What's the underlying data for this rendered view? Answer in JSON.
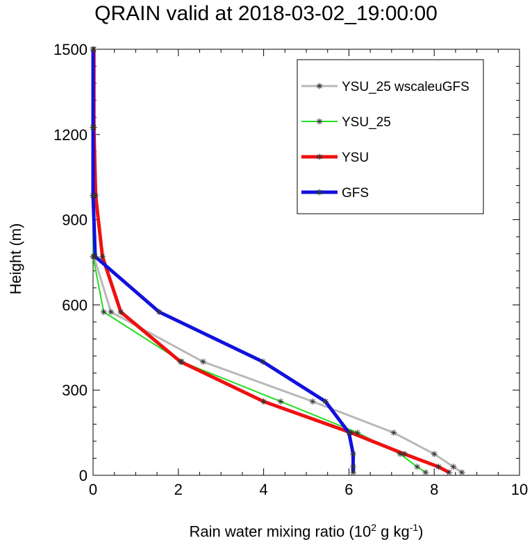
{
  "chart_data": {
    "type": "line",
    "title": "QRAIN valid at 2018-03-02_19:00:00",
    "xlabel": "Rain water mixing ratio (10",
    "xlabel_sup1": "2",
    "xlabel_mid": " g kg",
    "xlabel_sup2": "-1",
    "xlabel_end": ")",
    "ylabel": "Height (m)",
    "xlim": [
      0,
      10
    ],
    "ylim": [
      0,
      1500
    ],
    "xticks": [
      0,
      2,
      4,
      6,
      8,
      10
    ],
    "yticks": [
      0,
      300,
      600,
      900,
      1200,
      1500
    ],
    "grid": false,
    "legend_position": "top-right",
    "series": [
      {
        "name": "YSU_25 wscaleuGFS",
        "color": "#b8b8b8",
        "points": [
          [
            8.65,
            10
          ],
          [
            8.45,
            30
          ],
          [
            8.0,
            75
          ],
          [
            7.05,
            150
          ],
          [
            5.15,
            260
          ],
          [
            2.58,
            400
          ],
          [
            0.42,
            575
          ],
          [
            0.02,
            770
          ],
          [
            0.0,
            985
          ],
          [
            0.0,
            1225
          ],
          [
            0.0,
            1500
          ]
        ]
      },
      {
        "name": "YSU_25",
        "color": "#22dd22",
        "points": [
          [
            7.8,
            10
          ],
          [
            7.6,
            30
          ],
          [
            7.2,
            75
          ],
          [
            6.2,
            150
          ],
          [
            4.4,
            260
          ],
          [
            2.08,
            400
          ],
          [
            0.25,
            575
          ],
          [
            0.0,
            770
          ],
          [
            0.0,
            985
          ],
          [
            0.0,
            1225
          ],
          [
            0.0,
            1500
          ]
        ]
      },
      {
        "name": "YSU",
        "color": "#ee1111",
        "points": [
          [
            8.35,
            10
          ],
          [
            8.1,
            30
          ],
          [
            7.3,
            75
          ],
          [
            6.05,
            150
          ],
          [
            4.0,
            260
          ],
          [
            2.05,
            400
          ],
          [
            0.65,
            575
          ],
          [
            0.22,
            770
          ],
          [
            0.06,
            985
          ],
          [
            0.02,
            1225
          ],
          [
            0.02,
            1500
          ]
        ]
      },
      {
        "name": "GFS",
        "color": "#1111dd",
        "points": [
          [
            6.1,
            10
          ],
          [
            6.1,
            30
          ],
          [
            6.1,
            75
          ],
          [
            6.0,
            150
          ],
          [
            5.45,
            260
          ],
          [
            3.98,
            400
          ],
          [
            1.55,
            575
          ],
          [
            0.05,
            770
          ],
          [
            0.0,
            985
          ],
          [
            0.0,
            1225
          ],
          [
            0.0,
            1500
          ]
        ]
      }
    ]
  }
}
